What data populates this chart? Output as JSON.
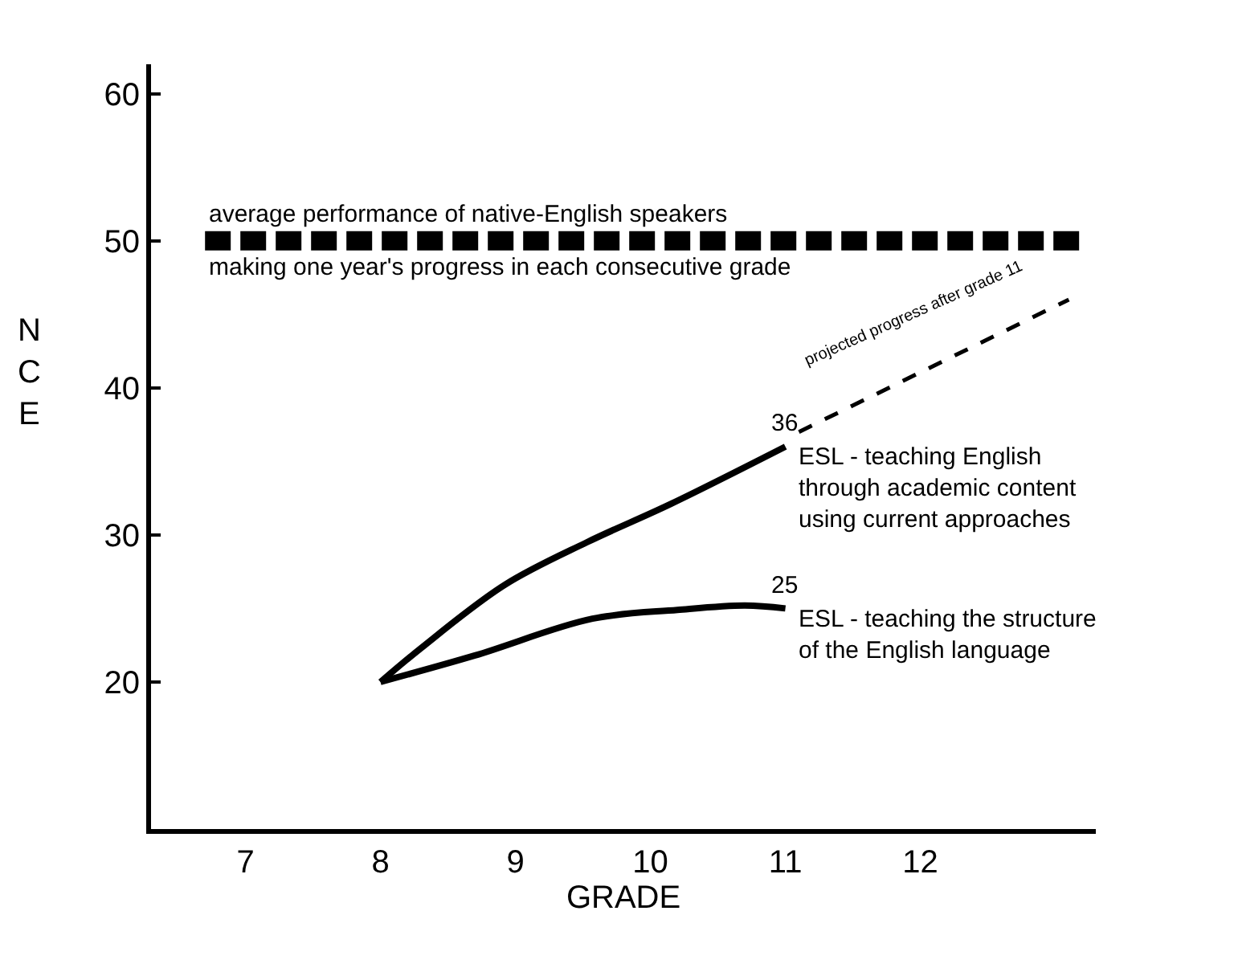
{
  "chart_data": {
    "type": "line",
    "xlabel": "GRADE",
    "ylabel": "NCE",
    "xlim": [
      6.3,
      13.3
    ],
    "xticks": [
      7,
      8,
      9,
      10,
      11,
      12
    ],
    "ylim": [
      10,
      62
    ],
    "yticks": [
      20,
      30,
      40,
      50,
      60
    ],
    "legend": false,
    "marker": "none",
    "series": [
      {
        "name": "ESL - teaching English\nthrough academic content\nusing current approaches",
        "color": "#000000",
        "line_style": "solid",
        "x": [
          8,
          8.3,
          8.92,
          9.53,
          10.15,
          11
        ],
        "values": [
          20,
          22.3,
          26.6,
          29.5,
          32.1,
          36
        ]
      },
      {
        "name": "ESL - teaching the structure\nof the English language",
        "color": "#000000",
        "line_style": "solid",
        "x": [
          8,
          8.7,
          9.57,
          10.2,
          10.7,
          11
        ],
        "values": [
          20,
          21.8,
          24.3,
          24.9,
          25.2,
          25
        ]
      },
      {
        "color": "#000000",
        "line_style": "dashed",
        "x": [
          11.1,
          13.1
        ],
        "values": [
          37,
          46
        ]
      }
    ],
    "ref_lines": [
      {
        "axis": "y",
        "value": 50,
        "label": "average performance of native-English speakers",
        "color": "#000000",
        "line_style": "dashed"
      }
    ],
    "annotations": [
      {
        "text": "making one year's progress in each consecutive grade",
        "x": 6.7,
        "y": 50
      },
      {
        "text": "36",
        "x": 11,
        "y": 36
      },
      {
        "text": "25",
        "x": 11,
        "y": 25
      },
      {
        "text": "projected progress after grade 11",
        "x": 11.95,
        "y": 40.6
      }
    ]
  }
}
